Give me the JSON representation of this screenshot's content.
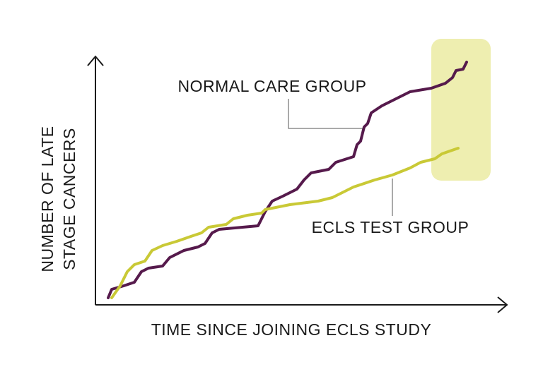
{
  "chart_data": {
    "type": "line",
    "xlabel": "TIME SINCE JOINING ECLS STUDY",
    "ylabel": [
      "NUMBER OF LATE",
      "STAGE CANCERS"
    ],
    "xlim": [
      0,
      583
    ],
    "ylim": [
      0,
      352
    ],
    "series": [
      {
        "name": "NORMAL CARE GROUP",
        "color": "#561a4c",
        "x": [
          18,
          23,
          40,
          55,
          65,
          75,
          95,
          105,
          125,
          145,
          155,
          165,
          175,
          230,
          240,
          250,
          265,
          285,
          295,
          305,
          330,
          340,
          365,
          370,
          375,
          380,
          385,
          390,
          405,
          425,
          445,
          475,
          495,
          505,
          510,
          520,
          525
        ],
        "values": [
          10,
          22,
          27,
          32,
          47,
          52,
          55,
          67,
          77,
          82,
          87,
          102,
          107,
          112,
          132,
          147,
          154,
          164,
          177,
          187,
          192,
          202,
          210,
          227,
          232,
          252,
          257,
          272,
          282,
          292,
          302,
          307,
          314,
          322,
          332,
          334,
          344
        ]
      },
      {
        "name": "ECLS TEST GROUP",
        "color": "#c9c936",
        "x": [
          23,
          35,
          45,
          55,
          70,
          80,
          95,
          115,
          135,
          150,
          160,
          185,
          195,
          215,
          235,
          240,
          275,
          315,
          335,
          355,
          365,
          395,
          420,
          445,
          460,
          480,
          490,
          513
        ],
        "values": [
          10,
          27,
          47,
          57,
          62,
          77,
          84,
          90,
          97,
          102,
          110,
          114,
          122,
          127,
          130,
          135,
          142,
          147,
          152,
          162,
          167,
          177,
          184,
          194,
          202,
          207,
          214,
          222
        ]
      }
    ]
  }
}
